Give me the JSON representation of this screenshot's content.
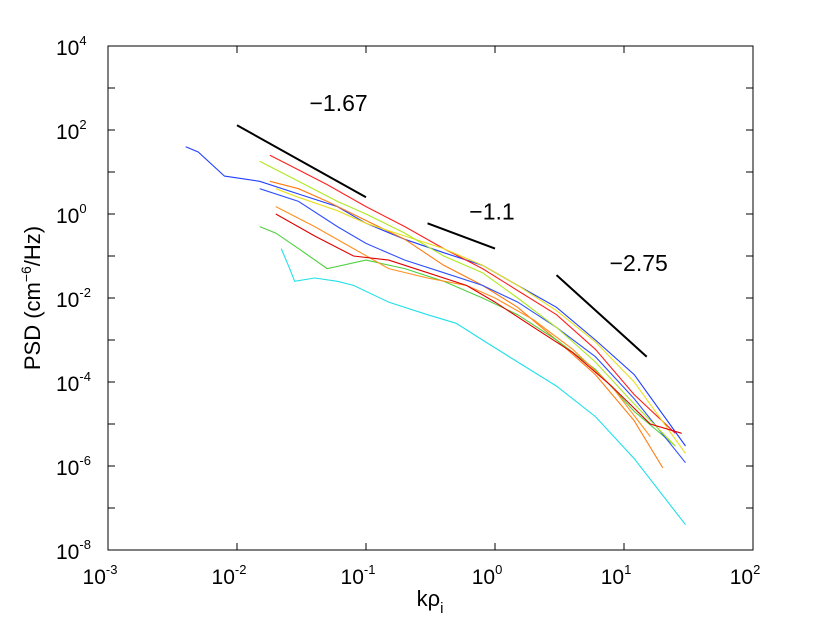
{
  "chart_data": {
    "type": "line",
    "xscale": "log",
    "yscale": "log",
    "xlim": [
      0.001,
      100
    ],
    "ylim": [
      1e-08,
      10000
    ],
    "xlabel": {
      "base": "kρ",
      "subscript": "i"
    },
    "ylabel": {
      "prefix": "PSD (cm",
      "exponent": "−6",
      "suffix": "/Hz)"
    },
    "x_ticks": [
      {
        "base": "10",
        "exp": "-3"
      },
      {
        "base": "10",
        "exp": "-2"
      },
      {
        "base": "10",
        "exp": "-1"
      },
      {
        "base": "10",
        "exp": "0"
      },
      {
        "base": "10",
        "exp": "1"
      },
      {
        "base": "10",
        "exp": "2"
      }
    ],
    "y_ticks": [
      {
        "base": "10",
        "exp": "-8"
      },
      {
        "base": "10",
        "exp": "-6"
      },
      {
        "base": "10",
        "exp": "-4"
      },
      {
        "base": "10",
        "exp": "-2"
      },
      {
        "base": "10",
        "exp": "0"
      },
      {
        "base": "10",
        "exp": "2"
      },
      {
        "base": "10",
        "exp": "4"
      }
    ],
    "slope_annotations": [
      {
        "label": "−1.67",
        "x": [
          0.01,
          0.1
        ],
        "y": [
          130,
          2.5
        ]
      },
      {
        "label": "−1.1",
        "x": [
          0.3,
          1.0
        ],
        "y": [
          0.6,
          0.15
        ]
      },
      {
        "label": "−2.75",
        "x": [
          3,
          15
        ],
        "y": [
          0.035,
          0.0004
        ]
      }
    ],
    "series": [
      {
        "name": "blue-1",
        "color": "#2040ff",
        "points": [
          [
            0.004,
            40
          ],
          [
            0.005,
            30
          ],
          [
            0.008,
            8
          ],
          [
            0.015,
            6
          ],
          [
            0.03,
            3
          ],
          [
            0.06,
            1.5
          ],
          [
            0.1,
            0.6
          ],
          [
            0.2,
            0.25
          ],
          [
            0.4,
            0.12
          ],
          [
            0.8,
            0.06
          ],
          [
            1.5,
            0.02
          ],
          [
            3,
            0.006
          ],
          [
            6,
            0.001
          ],
          [
            12,
            0.00015
          ],
          [
            30,
            3e-06
          ]
        ]
      },
      {
        "name": "cyan",
        "color": "#20e0e8",
        "points": [
          [
            0.022,
            0.15
          ],
          [
            0.025,
            0.06
          ],
          [
            0.028,
            0.025
          ],
          [
            0.04,
            0.03
          ],
          [
            0.06,
            0.025
          ],
          [
            0.08,
            0.02
          ],
          [
            0.15,
            0.008
          ],
          [
            0.3,
            0.004
          ],
          [
            0.5,
            0.0025
          ],
          [
            0.8,
            0.001
          ],
          [
            1.5,
            0.0003
          ],
          [
            3,
            8e-05
          ],
          [
            6,
            1.5e-05
          ],
          [
            12,
            1.5e-06
          ],
          [
            30,
            4e-08
          ]
        ]
      },
      {
        "name": "red-1",
        "color": "#ff2020",
        "points": [
          [
            0.018,
            25
          ],
          [
            0.025,
            15
          ],
          [
            0.05,
            5
          ],
          [
            0.1,
            1.5
          ],
          [
            0.2,
            0.5
          ],
          [
            0.4,
            0.15
          ],
          [
            0.8,
            0.05
          ],
          [
            1.5,
            0.015
          ],
          [
            3,
            0.004
          ],
          [
            6,
            0.0006
          ],
          [
            12,
            5e-05
          ],
          [
            25,
            6e-06
          ]
        ]
      },
      {
        "name": "orange-1",
        "color": "#ff7a10",
        "points": [
          [
            0.018,
            6
          ],
          [
            0.03,
            4
          ],
          [
            0.05,
            2
          ],
          [
            0.1,
            0.7
          ],
          [
            0.2,
            0.25
          ],
          [
            0.4,
            0.06
          ],
          [
            0.8,
            0.02
          ],
          [
            1.5,
            0.006
          ],
          [
            3,
            0.001
          ],
          [
            6,
            0.00015
          ],
          [
            12,
            1.2e-05
          ],
          [
            20,
            9e-07
          ]
        ]
      },
      {
        "name": "yellow",
        "color": "#e8e020",
        "points": [
          [
            0.02,
            4
          ],
          [
            0.03,
            2.5
          ],
          [
            0.06,
            1.2
          ],
          [
            0.1,
            0.6
          ],
          [
            0.2,
            0.3
          ],
          [
            0.4,
            0.15
          ],
          [
            0.8,
            0.06
          ],
          [
            1.5,
            0.02
          ],
          [
            3,
            0.005
          ],
          [
            6,
            0.0009
          ],
          [
            12,
            0.0001
          ],
          [
            30,
            2e-06
          ]
        ]
      },
      {
        "name": "green",
        "color": "#50d040",
        "points": [
          [
            0.015,
            0.5
          ],
          [
            0.02,
            0.35
          ],
          [
            0.03,
            0.15
          ],
          [
            0.05,
            0.05
          ],
          [
            0.1,
            0.08
          ],
          [
            0.2,
            0.05
          ],
          [
            0.4,
            0.025
          ],
          [
            0.8,
            0.01
          ],
          [
            1.5,
            0.004
          ],
          [
            3,
            0.001
          ],
          [
            6,
            0.0002
          ],
          [
            12,
            2e-05
          ],
          [
            25,
            3e-06
          ]
        ]
      },
      {
        "name": "blue-2",
        "color": "#3050ff",
        "points": [
          [
            0.015,
            4
          ],
          [
            0.03,
            2
          ],
          [
            0.06,
            0.5
          ],
          [
            0.1,
            0.2
          ],
          [
            0.2,
            0.08
          ],
          [
            0.4,
            0.04
          ],
          [
            0.8,
            0.02
          ],
          [
            1.5,
            0.008
          ],
          [
            3,
            0.002
          ],
          [
            6,
            0.0004
          ],
          [
            12,
            4e-05
          ],
          [
            30,
            1.2e-06
          ]
        ]
      },
      {
        "name": "lime",
        "color": "#b0e820",
        "points": [
          [
            0.015,
            18
          ],
          [
            0.03,
            6
          ],
          [
            0.06,
            2
          ],
          [
            0.1,
            1
          ],
          [
            0.2,
            0.35
          ],
          [
            0.4,
            0.1
          ],
          [
            0.8,
            0.04
          ],
          [
            1.5,
            0.01
          ],
          [
            3,
            0.002
          ],
          [
            6,
            0.0003
          ],
          [
            12,
            3e-05
          ],
          [
            25,
            3e-06
          ]
        ]
      },
      {
        "name": "orange-2",
        "color": "#ff9020",
        "points": [
          [
            0.02,
            1.5
          ],
          [
            0.04,
            0.5
          ],
          [
            0.08,
            0.15
          ],
          [
            0.15,
            0.05
          ],
          [
            0.3,
            0.03
          ],
          [
            0.6,
            0.02
          ],
          [
            1,
            0.01
          ],
          [
            2,
            0.003
          ],
          [
            4,
            0.0006
          ],
          [
            8,
            8e-05
          ],
          [
            16,
            5e-06
          ]
        ]
      },
      {
        "name": "red-2",
        "color": "#e00000",
        "points": [
          [
            0.02,
            1
          ],
          [
            0.04,
            0.3
          ],
          [
            0.08,
            0.1
          ],
          [
            0.15,
            0.08
          ],
          [
            0.3,
            0.04
          ],
          [
            0.6,
            0.02
          ],
          [
            1,
            0.008
          ],
          [
            2,
            0.002
          ],
          [
            4,
            0.0005
          ],
          [
            8,
            8e-05
          ],
          [
            16,
            1e-05
          ],
          [
            28,
            6e-06
          ]
        ]
      }
    ]
  }
}
